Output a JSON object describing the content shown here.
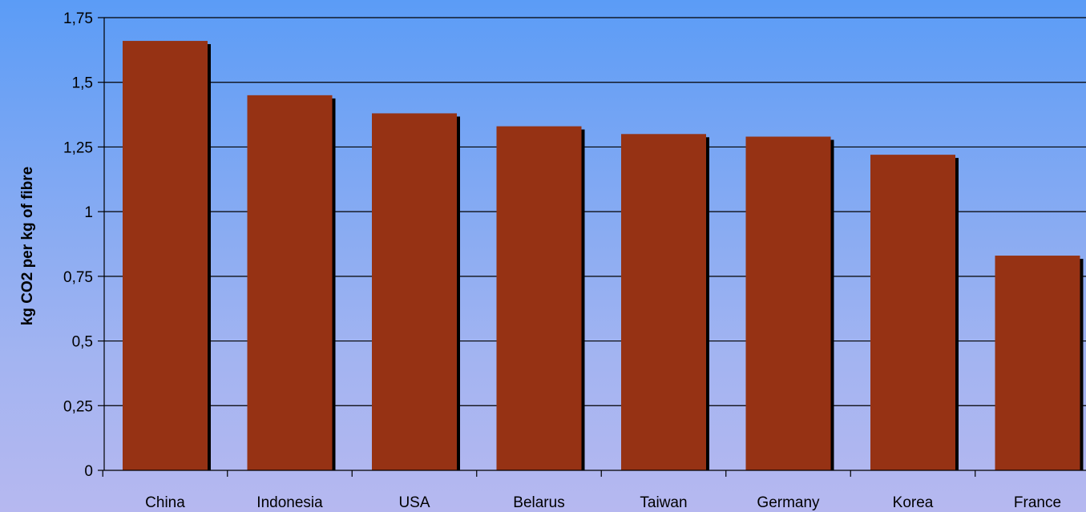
{
  "chart_data": {
    "type": "bar",
    "title": "",
    "xlabel": "",
    "ylabel": "kg CO2 per kg of fibre",
    "categories": [
      "China",
      "Indonesia",
      "USA",
      "Belarus",
      "Taiwan",
      "Germany",
      "Korea",
      "France"
    ],
    "values": [
      1.66,
      1.45,
      1.38,
      1.33,
      1.3,
      1.29,
      1.22,
      0.83
    ],
    "ylim": [
      0,
      1.75
    ],
    "yticks": [
      0,
      0.25,
      0.5,
      0.75,
      1,
      1.25,
      1.5,
      1.75
    ],
    "ytick_labels": [
      "0",
      "0,25",
      "0,5",
      "0,75",
      "1",
      "1,25",
      "1,5",
      "1,75"
    ],
    "grid": true,
    "legend": "none",
    "colors": {
      "bar": "#963214",
      "bar_shadow": "#000000",
      "gridline": "#000000",
      "background_top": "#5b9cf6",
      "background_bottom": "#b6b8f0"
    }
  }
}
